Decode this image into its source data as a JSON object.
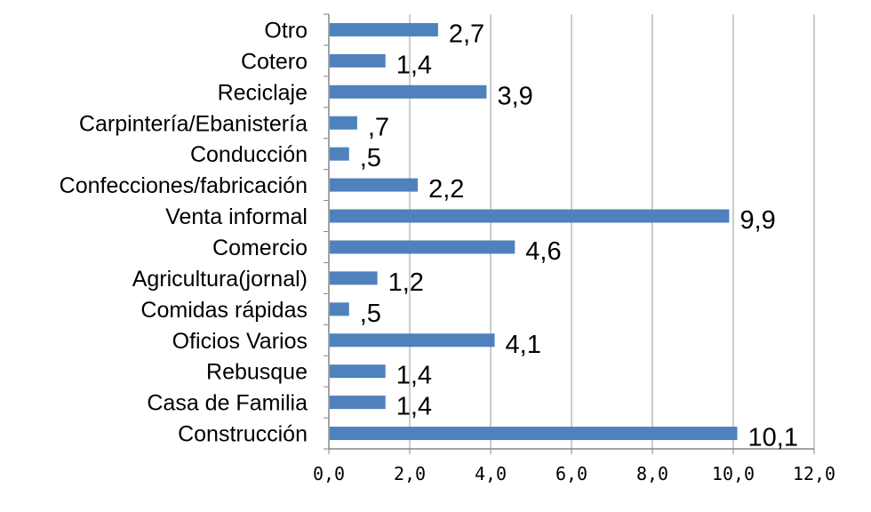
{
  "chart_data": {
    "type": "bar",
    "orientation": "horizontal",
    "categories": [
      "Otro",
      "Cotero",
      "Reciclaje",
      "Carpintería/Ebanistería",
      "Conducción",
      "Confecciones/fabricación",
      "Venta informal",
      "Comercio",
      "Agricultura(jornal)",
      "Comidas rápidas",
      "Oficios Varios",
      "Rebusque",
      "Casa de Familia",
      "Construcción"
    ],
    "values": [
      2.7,
      1.4,
      3.9,
      0.7,
      0.5,
      2.2,
      9.9,
      4.6,
      1.2,
      0.5,
      4.1,
      1.4,
      1.4,
      10.1
    ],
    "value_labels": [
      "2,7",
      "1,4",
      "3,9",
      ",7",
      ",5",
      "2,2",
      "9,9",
      "4,6",
      "1,2",
      ",5",
      "4,1",
      "1,4",
      "1,4",
      "10,1"
    ],
    "xlim": [
      0,
      12
    ],
    "xticks": [
      "0,0",
      "2,0",
      "4,0",
      "6,0",
      "8,0",
      "10,0",
      "12,0"
    ],
    "grid": "vertical",
    "title": "",
    "xlabel": "",
    "ylabel": "",
    "colors": {
      "bar": "#4f81bd",
      "grid": "#999999",
      "axis": "#868686"
    }
  }
}
